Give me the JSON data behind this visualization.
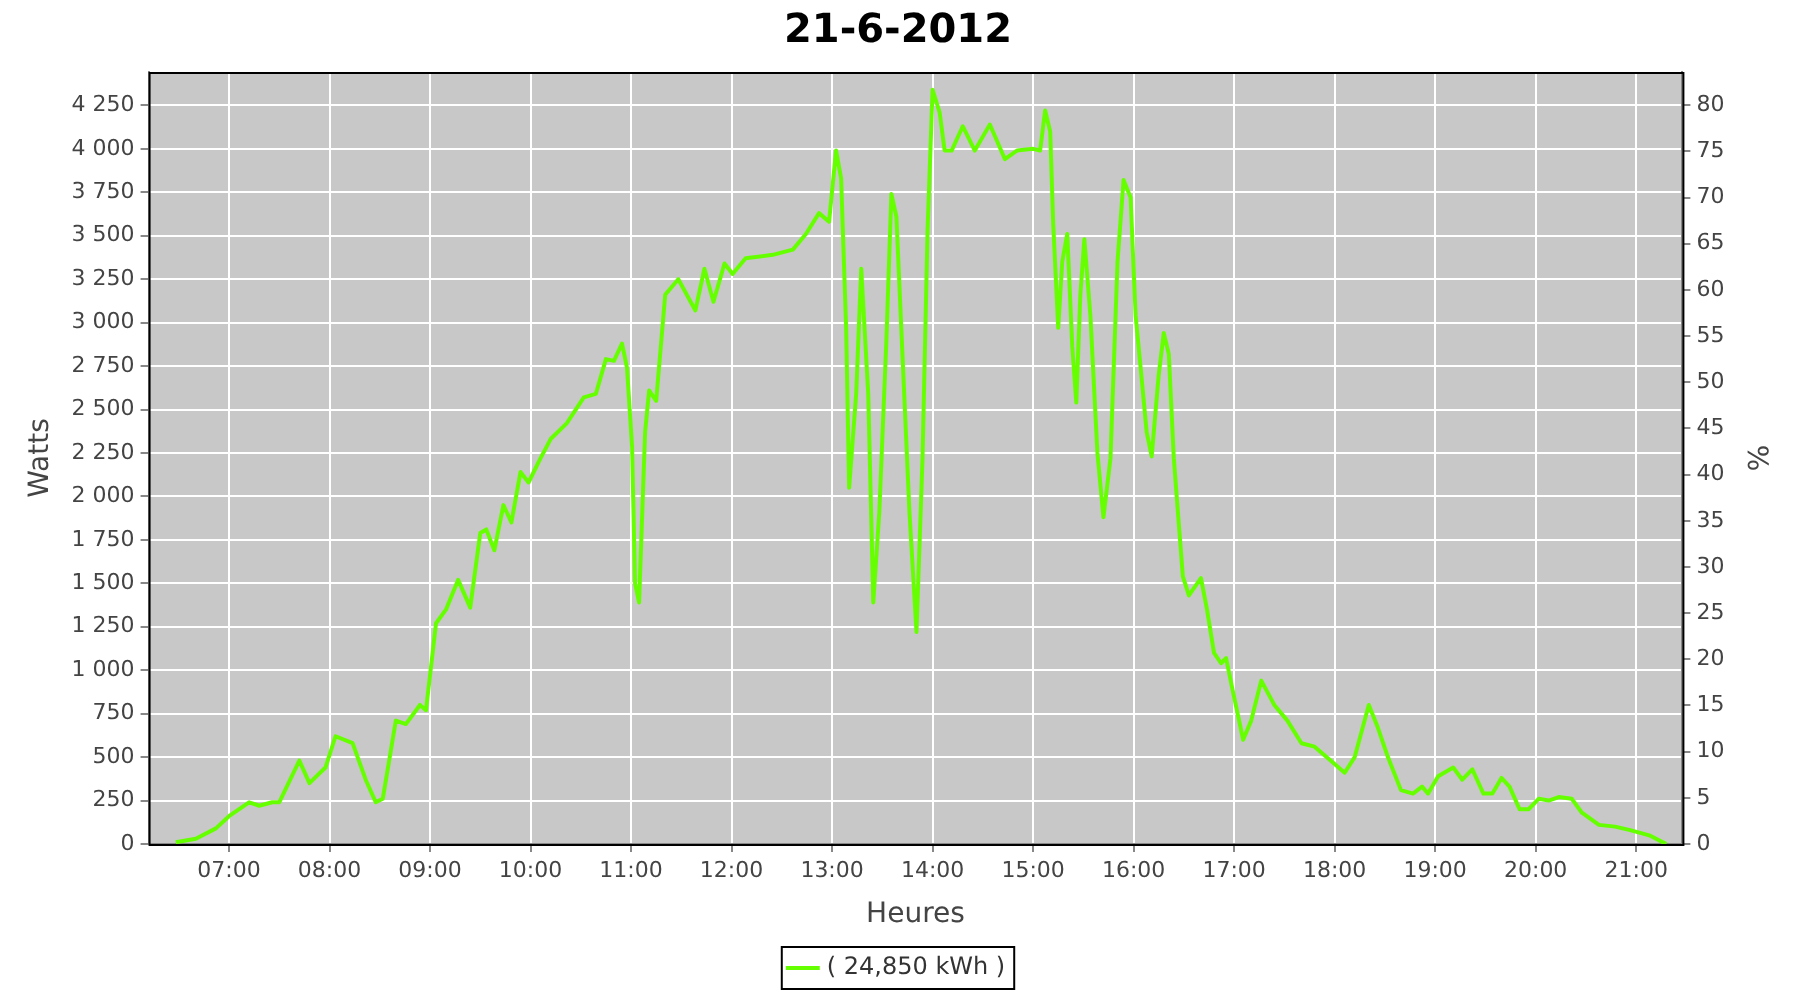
{
  "chart_data": {
    "type": "line",
    "title": "21-6-2012",
    "xlabel": "Heures",
    "ylabel": "Watts",
    "y2label": "%",
    "x": [
      6.47,
      6.67,
      6.87,
      7.0,
      7.2,
      7.3,
      7.43,
      7.5,
      7.7,
      7.8,
      7.96,
      8.06,
      8.23,
      8.36,
      8.46,
      8.53,
      8.66,
      8.76,
      8.9,
      8.96,
      9.06,
      9.16,
      9.28,
      9.4,
      9.5,
      9.56,
      9.64,
      9.73,
      9.81,
      9.9,
      9.98,
      10.1,
      10.2,
      10.36,
      10.53,
      10.65,
      10.75,
      10.83,
      10.91,
      10.96,
      11.01,
      11.04,
      11.08,
      11.14,
      11.18,
      11.25,
      11.34,
      11.47,
      11.64,
      11.73,
      11.82,
      11.93,
      12.01,
      12.14,
      12.41,
      12.61,
      12.74,
      12.87,
      12.97,
      13.04,
      13.09,
      13.14,
      13.17,
      13.24,
      13.29,
      13.36,
      13.41,
      13.47,
      13.54,
      13.59,
      13.64,
      13.7,
      13.77,
      13.84,
      13.9,
      13.95,
      14.0,
      14.07,
      14.12,
      14.19,
      14.3,
      14.42,
      14.57,
      14.72,
      14.84,
      15.0,
      15.07,
      15.12,
      15.17,
      15.2,
      15.25,
      15.29,
      15.34,
      15.39,
      15.43,
      15.47,
      15.51,
      15.57,
      15.64,
      15.7,
      15.77,
      15.84,
      15.9,
      15.97,
      16.02,
      16.07,
      16.13,
      16.18,
      16.25,
      16.3,
      16.35,
      16.4,
      16.45,
      16.49,
      16.55,
      16.67,
      16.73,
      16.8,
      16.87,
      16.92,
      16.98,
      17.09,
      17.17,
      17.27,
      17.4,
      17.53,
      17.67,
      17.8,
      17.96,
      18.1,
      18.2,
      18.34,
      18.43,
      18.53,
      18.66,
      18.78,
      18.87,
      18.93,
      19.03,
      19.18,
      19.27,
      19.37,
      19.48,
      19.57,
      19.66,
      19.74,
      19.84,
      19.93,
      20.03,
      20.13,
      20.23,
      20.36,
      20.46,
      20.63,
      20.79,
      20.94,
      21.13,
      21.3
    ],
    "series": [
      {
        "name": "( 24,850 kWh )",
        "color": "#66ff00",
        "values": [
          10,
          30,
          90,
          160,
          240,
          220,
          240,
          240,
          480,
          350,
          440,
          620,
          580,
          370,
          240,
          260,
          710,
          690,
          800,
          770,
          1270,
          1350,
          1520,
          1360,
          1790,
          1810,
          1690,
          1950,
          1850,
          2140,
          2080,
          2220,
          2330,
          2420,
          2570,
          2590,
          2790,
          2780,
          2880,
          2740,
          2290,
          1500,
          1390,
          2370,
          2610,
          2550,
          3160,
          3250,
          3070,
          3310,
          3120,
          3340,
          3280,
          3370,
          3390,
          3420,
          3510,
          3630,
          3580,
          3990,
          3830,
          2970,
          2050,
          2590,
          3310,
          2590,
          1390,
          1910,
          2890,
          3740,
          3610,
          2820,
          1910,
          1220,
          2220,
          3530,
          4340,
          4210,
          3990,
          3990,
          4130,
          3990,
          4140,
          3940,
          3990,
          4000,
          3990,
          4220,
          4100,
          3570,
          2970,
          3350,
          3510,
          2860,
          2540,
          3160,
          3480,
          3040,
          2250,
          1880,
          2220,
          3350,
          3820,
          3720,
          3040,
          2740,
          2370,
          2230,
          2700,
          2940,
          2820,
          2220,
          1840,
          1540,
          1430,
          1530,
          1350,
          1100,
          1040,
          1070,
          900,
          600,
          710,
          940,
          800,
          710,
          580,
          560,
          480,
          410,
          500,
          800,
          670,
          500,
          310,
          290,
          330,
          290,
          390,
          440,
          370,
          430,
          290,
          290,
          380,
          330,
          200,
          200,
          260,
          250,
          270,
          260,
          180,
          110,
          100,
          80,
          50,
          0
        ]
      }
    ],
    "xlim": [
      6.2,
      21.46
    ],
    "xticks": [
      {
        "value": 7,
        "label": "07:00"
      },
      {
        "value": 8,
        "label": "08:00"
      },
      {
        "value": 9,
        "label": "09:00"
      },
      {
        "value": 10,
        "label": "10:00"
      },
      {
        "value": 11,
        "label": "11:00"
      },
      {
        "value": 12,
        "label": "12:00"
      },
      {
        "value": 13,
        "label": "13:00"
      },
      {
        "value": 14,
        "label": "14:00"
      },
      {
        "value": 15,
        "label": "15:00"
      },
      {
        "value": 16,
        "label": "16:00"
      },
      {
        "value": 17,
        "label": "17:00"
      },
      {
        "value": 18,
        "label": "18:00"
      },
      {
        "value": 19,
        "label": "19:00"
      },
      {
        "value": 20,
        "label": "20:00"
      },
      {
        "value": 21,
        "label": "21:00"
      }
    ],
    "ylim": [
      0,
      4442
    ],
    "yticks": [
      0,
      250,
      500,
      750,
      {
        "value": 1000,
        "label": "1 000"
      },
      {
        "value": 1250,
        "label": "1 250"
      },
      {
        "value": 1500,
        "label": "1 500"
      },
      {
        "value": 1750,
        "label": "1 750"
      },
      {
        "value": 2000,
        "label": "2 000"
      },
      {
        "value": 2250,
        "label": "2 250"
      },
      {
        "value": 2500,
        "label": "2 500"
      },
      {
        "value": 2750,
        "label": "2 750"
      },
      {
        "value": 3000,
        "label": "3 000"
      },
      {
        "value": 3250,
        "label": "3 250"
      },
      {
        "value": 3500,
        "label": "3 500"
      },
      {
        "value": 3750,
        "label": "3 750"
      },
      {
        "value": 4000,
        "label": "4 000"
      },
      {
        "value": 4250,
        "label": "4 250"
      }
    ],
    "y2lim": [
      0,
      83.6
    ],
    "y2ticks": [
      0,
      5,
      10,
      15,
      20,
      25,
      30,
      35,
      40,
      45,
      50,
      55,
      60,
      65,
      70,
      75,
      80
    ],
    "grid": true,
    "legend": "bottom"
  }
}
